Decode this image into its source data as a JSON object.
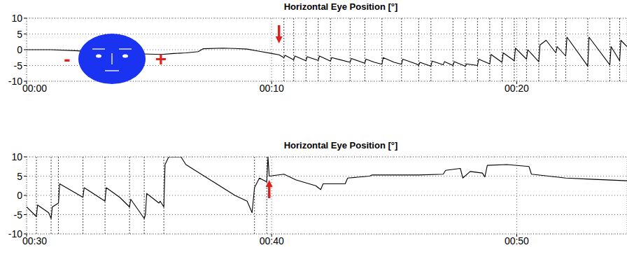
{
  "chart_data": [
    {
      "type": "line",
      "title": "Horizontal Eye Position [°]",
      "xlim": [
        0,
        24.5
      ],
      "ylim": [
        -10,
        10
      ],
      "xticks": [
        {
          "value": 0,
          "label": "00:00"
        },
        {
          "value": 10,
          "label": "00:10"
        },
        {
          "value": 20,
          "label": "00:20"
        }
      ],
      "yticks": [
        -10,
        -5,
        0,
        5,
        10
      ],
      "grid": true,
      "x": [
        0,
        1,
        2,
        3,
        4,
        5,
        5.5,
        6,
        6.5,
        7,
        7.2,
        8,
        8.5,
        9,
        9.5,
        10,
        10.3,
        10.5,
        10.55,
        10.9,
        10.95,
        11.4,
        11.45,
        11.9,
        11.95,
        12.4,
        12.45,
        12.8,
        13.2,
        13.25,
        13.8,
        13.85,
        14.2,
        14.5,
        14.55,
        15.0,
        15.3,
        15.35,
        15.9,
        16.0,
        16.05,
        16.5,
        16.55,
        17.0,
        17.05,
        17.4,
        17.45,
        17.9,
        17.95,
        18.4,
        18.45,
        18.9,
        18.95,
        19.4,
        19.45,
        19.9,
        19.95,
        20.4,
        20.45,
        20.9,
        20.95,
        21.2,
        21.6,
        21.65,
        22.0,
        22.05,
        22.9,
        22.95,
        23.8,
        23.85,
        24.2,
        24.25,
        24.5
      ],
      "series": [
        {
          "color": "#000000",
          "values": [
            0,
            0,
            -0.3,
            -0.8,
            -1.2,
            -1.4,
            -1.5,
            -1.2,
            -1.0,
            -0.6,
            0.3,
            0.5,
            0.4,
            0.2,
            -0.5,
            -1.2,
            -1.6,
            -2.5,
            -1.8,
            -3.2,
            -2.0,
            -3.5,
            -2.2,
            -3.4,
            -2.0,
            -3.6,
            -2.5,
            -3.2,
            -4.0,
            -2.8,
            -4.3,
            -3.0,
            -4.0,
            -4.6,
            -2.5,
            -4.0,
            -4.6,
            -3.0,
            -4.5,
            -5.0,
            -4.0,
            -5.2,
            -3.6,
            -4.8,
            -3.8,
            -5.0,
            -3.8,
            -5.2,
            -4.5,
            -5.0,
            -3.0,
            -4.5,
            -1.5,
            -4.0,
            -1.0,
            -3.5,
            0.5,
            -3.0,
            0.0,
            -3.8,
            1.5,
            3.0,
            -1.0,
            1.0,
            -2.0,
            4.0,
            -5.2,
            4.0,
            -4.8,
            1.0,
            -3.5,
            3.0,
            1.0
          ]
        }
      ],
      "event_times": [
        10.5,
        10.9,
        11.4,
        11.9,
        12.4,
        13.2,
        13.8,
        14.5,
        15.3,
        16.0,
        16.5,
        17.4,
        17.9,
        18.4,
        18.9,
        19.4,
        19.9,
        20.4,
        20.9,
        21.6,
        22.0,
        22.9,
        23.8,
        24.2
      ],
      "arrows": [
        {
          "x": 10.3,
          "y": 2,
          "direction": "down",
          "color": "#e0201b"
        }
      ],
      "direction_labels": [
        "-",
        "+"
      ]
    },
    {
      "type": "line",
      "title": "Horizontal Eye Position [°]",
      "xlim": [
        30,
        54.5
      ],
      "ylim": [
        -10,
        10
      ],
      "xticks": [
        {
          "value": 30,
          "label": "00:30"
        },
        {
          "value": 40,
          "label": "00:40"
        },
        {
          "value": 50,
          "label": "00:50"
        }
      ],
      "yticks": [
        -10,
        -5,
        0,
        5,
        10
      ],
      "grid": true,
      "x": [
        30,
        30.4,
        30.45,
        30.9,
        31.0,
        31.05,
        31.3,
        31.35,
        32.3,
        32.35,
        33.2,
        33.25,
        33.8,
        34.2,
        34.25,
        34.8,
        34.85,
        34.9,
        35.4,
        35.45,
        35.6,
        35.65,
        35.8,
        36.3,
        36.5,
        37.5,
        38.5,
        39,
        39.2,
        39.3,
        39.5,
        39.8,
        39.85,
        39.9,
        40.5,
        41,
        41.8,
        42,
        42.1,
        43,
        43.1,
        44,
        44.1,
        46,
        47,
        47.1,
        47.7,
        47.8,
        48.1,
        48.6,
        48.7,
        48.8,
        49.6,
        50.5,
        50.6,
        52,
        53,
        54.5
      ],
      "series": [
        {
          "color": "#000000",
          "values": [
            -3,
            -5.5,
            -2.5,
            -4.5,
            -6,
            -3,
            -2,
            3.0,
            -0.5,
            2.0,
            -1.5,
            2.0,
            -0.5,
            -3.0,
            -1.0,
            -6.0,
            -5,
            0.5,
            -2.0,
            -1.5,
            -3.0,
            8.0,
            10.0,
            10,
            8.0,
            4.0,
            0,
            -1.5,
            -4.5,
            2.0,
            4.5,
            3.5,
            10,
            5,
            5.5,
            4.0,
            2.5,
            1.5,
            3.0,
            3.0,
            4.5,
            5.0,
            5.3,
            5.3,
            5.5,
            6.5,
            7.0,
            4.5,
            6.2,
            5.8,
            4.8,
            7.8,
            8.0,
            7.5,
            5.5,
            4.5,
            4.2,
            3.8
          ]
        }
      ],
      "event_times": [
        30.4,
        31.0,
        31.3,
        32.3,
        33.2,
        34.2,
        34.8,
        35.6,
        39.3,
        39.8
      ],
      "arrows": [
        {
          "x": 39.9,
          "y": 4,
          "direction": "up",
          "color": "#e0201b"
        }
      ]
    }
  ]
}
